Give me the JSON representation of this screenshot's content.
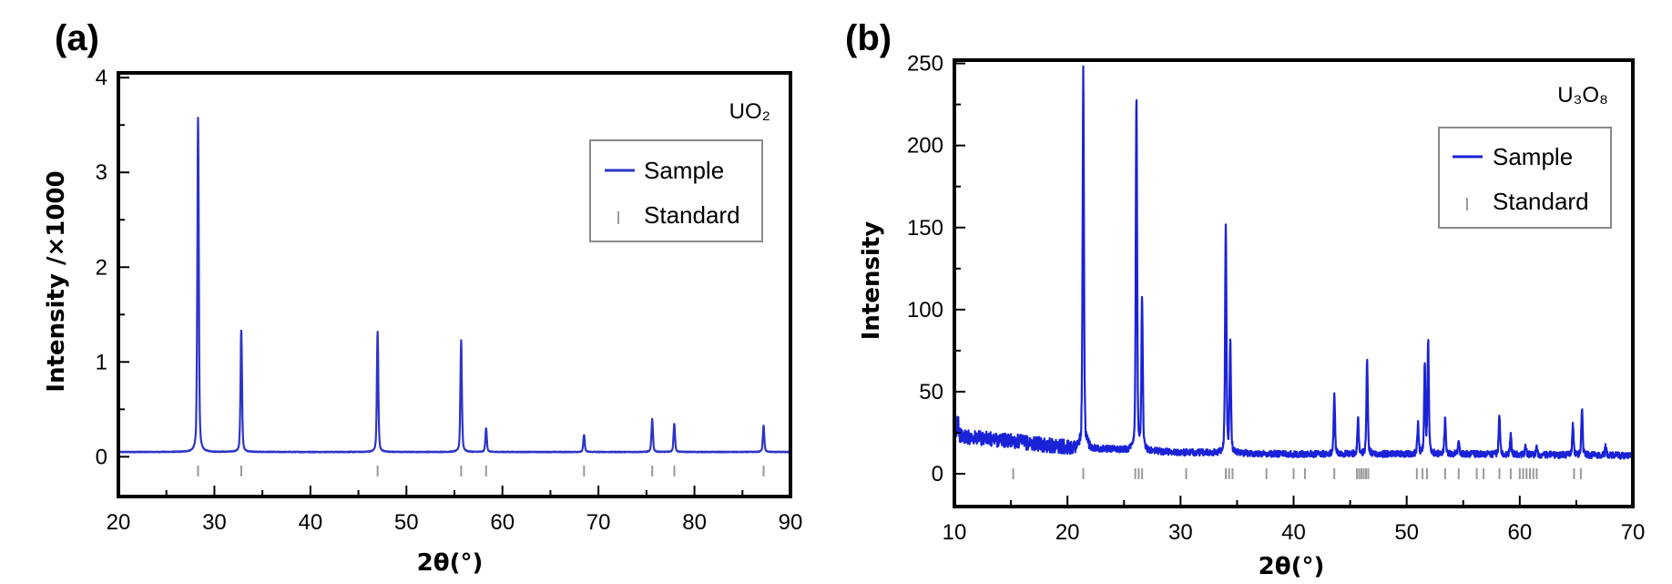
{
  "chart_data": [
    {
      "type": "line",
      "panel_label": "(a)",
      "annotation": "UO₂",
      "xlabel": "2θ(°)",
      "ylabel": "Intensity /×1000",
      "xlim": [
        20,
        90
      ],
      "ylim": [
        -0.42,
        4.05
      ],
      "xticks": [
        20,
        30,
        40,
        50,
        60,
        70,
        80,
        90
      ],
      "yticks": [
        0,
        1,
        2,
        3,
        4
      ],
      "baseline": 0.05,
      "noise": 0.004,
      "width": 0.18,
      "series": [
        {
          "name": "Sample",
          "color": "#2d35c8",
          "peaks": [
            {
              "x": 28.3,
              "y": 3.55
            },
            {
              "x": 32.8,
              "y": 1.3
            },
            {
              "x": 47.0,
              "y": 1.27
            },
            {
              "x": 55.7,
              "y": 1.18
            },
            {
              "x": 58.3,
              "y": 0.25
            },
            {
              "x": 68.5,
              "y": 0.18
            },
            {
              "x": 75.6,
              "y": 0.35
            },
            {
              "x": 77.9,
              "y": 0.3
            },
            {
              "x": 87.2,
              "y": 0.28
            }
          ]
        }
      ],
      "standard": {
        "name": "Standard",
        "color": "#9a9a9a",
        "y_level": -0.15,
        "positions": [
          28.3,
          32.8,
          47.0,
          55.7,
          58.3,
          68.5,
          75.6,
          77.9,
          87.2
        ]
      },
      "legend": {
        "position": "top-right",
        "entries": [
          "Sample",
          "Standard"
        ]
      }
    },
    {
      "type": "line",
      "panel_label": "(b)",
      "annotation": "U₃O₈",
      "xlabel": "2θ(°)",
      "ylabel": "Intensity",
      "xlim": [
        10,
        70
      ],
      "ylim": [
        -20,
        252
      ],
      "xticks": [
        10,
        20,
        30,
        40,
        50,
        60,
        70
      ],
      "yticks": [
        0,
        50,
        100,
        150,
        200,
        250
      ],
      "width": 0.14,
      "noise": 2.0,
      "series": [
        {
          "name": "Sample",
          "color": "#1a22d8",
          "background": [
            [
              10,
              23
            ],
            [
              15,
              20
            ],
            [
              20,
              16
            ],
            [
              30,
              13
            ],
            [
              40,
              12
            ],
            [
              55,
              12
            ],
            [
              70,
              11
            ]
          ],
          "peaks": [
            {
              "x": 10.3,
              "y": 14
            },
            {
              "x": 21.4,
              "y": 232
            },
            {
              "x": 26.1,
              "y": 214
            },
            {
              "x": 26.6,
              "y": 94
            },
            {
              "x": 34.0,
              "y": 137
            },
            {
              "x": 34.4,
              "y": 67
            },
            {
              "x": 43.6,
              "y": 36
            },
            {
              "x": 45.7,
              "y": 22
            },
            {
              "x": 46.5,
              "y": 56
            },
            {
              "x": 51.0,
              "y": 18
            },
            {
              "x": 51.6,
              "y": 54
            },
            {
              "x": 51.9,
              "y": 70
            },
            {
              "x": 53.4,
              "y": 22
            },
            {
              "x": 54.6,
              "y": 8
            },
            {
              "x": 58.2,
              "y": 24
            },
            {
              "x": 59.2,
              "y": 12
            },
            {
              "x": 60.5,
              "y": 6
            },
            {
              "x": 61.5,
              "y": 5
            },
            {
              "x": 64.7,
              "y": 18
            },
            {
              "x": 65.5,
              "y": 29
            },
            {
              "x": 67.6,
              "y": 6
            }
          ]
        }
      ],
      "standard": {
        "name": "Standard",
        "color": "#9a9a9a",
        "y_level": 0,
        "positions": [
          15.2,
          21.4,
          26.0,
          26.3,
          26.6,
          30.5,
          34.0,
          34.3,
          34.6,
          37.6,
          40.0,
          41.0,
          43.6,
          45.6,
          45.8,
          46.0,
          46.2,
          46.4,
          46.6,
          50.9,
          51.4,
          51.8,
          53.4,
          54.6,
          56.2,
          56.8,
          58.2,
          59.2,
          60.0,
          60.3,
          60.6,
          60.9,
          61.2,
          61.5,
          64.8,
          65.4
        ]
      },
      "legend": {
        "position": "top-right",
        "entries": [
          "Sample",
          "Standard"
        ]
      }
    }
  ]
}
